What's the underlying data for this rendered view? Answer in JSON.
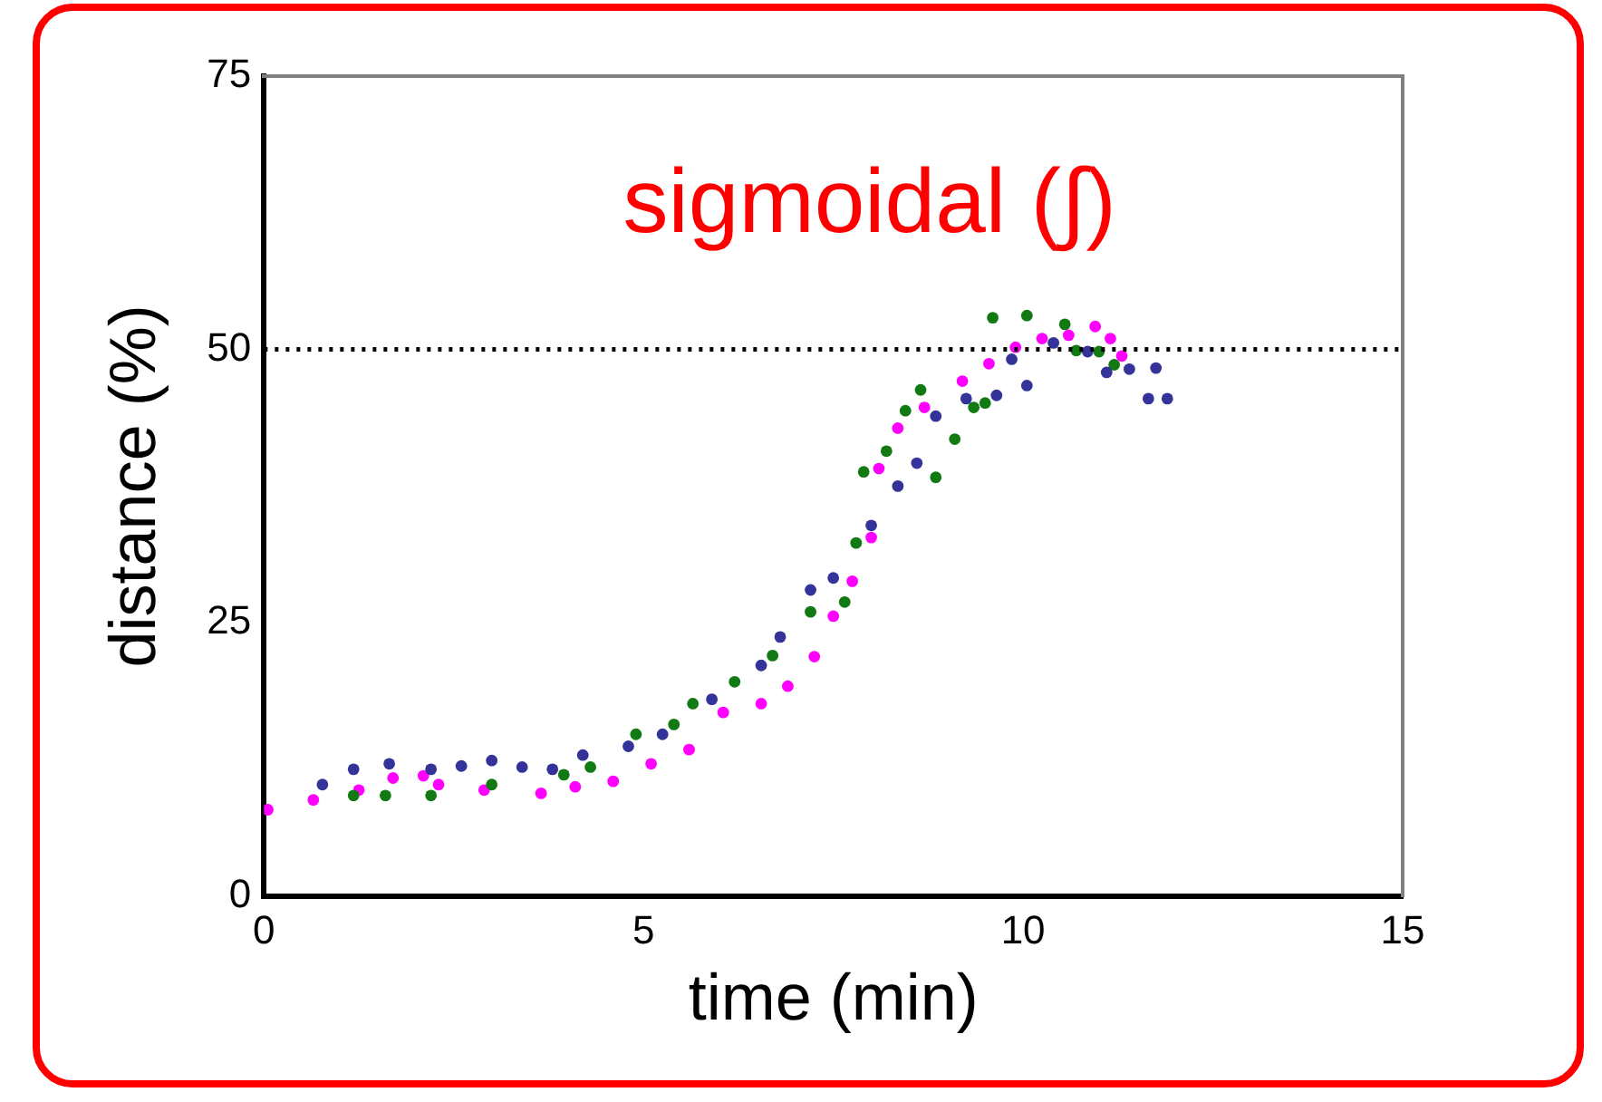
{
  "chart_data": {
    "type": "scatter",
    "title": "sigmoidal (∫)",
    "xlabel": "time (min)",
    "ylabel": "distance (%)",
    "xlim": [
      0,
      15
    ],
    "xticks": [
      0,
      5,
      10,
      15
    ],
    "ylim": [
      0,
      75
    ],
    "yticks": [
      0,
      25,
      50,
      75
    ],
    "grid": false,
    "legend": false,
    "marker": "circle",
    "ref_lines": [
      {
        "axis": "y",
        "value": 50,
        "color": "#000000",
        "line_style": "dotted"
      }
    ],
    "series": [
      {
        "color": "#333399",
        "x": [
          0.77,
          1.18,
          1.65,
          2.2,
          2.6,
          3.0,
          3.4,
          3.8,
          4.2,
          4.8,
          5.25,
          5.9,
          6.55,
          6.8,
          7.2,
          7.5,
          8.0,
          8.35,
          8.6,
          8.85,
          9.25,
          9.65,
          10.05,
          9.85,
          10.4,
          10.85,
          11.1,
          11.4,
          11.75,
          11.9,
          11.65
        ],
        "values": [
          10.2,
          11.6,
          12.1,
          11.6,
          11.9,
          12.4,
          11.8,
          11.6,
          12.9,
          13.7,
          14.8,
          18.0,
          21.1,
          23.7,
          28.0,
          29.1,
          33.9,
          37.5,
          39.6,
          43.9,
          45.5,
          45.8,
          46.7,
          49.1,
          50.6,
          49.8,
          47.9,
          48.2,
          48.3,
          45.5,
          45.5
        ]
      },
      {
        "color": "#127a12",
        "x": [
          1.18,
          1.6,
          2.2,
          3.0,
          3.95,
          4.3,
          4.9,
          5.4,
          5.65,
          6.2,
          6.7,
          7.2,
          7.65,
          7.8,
          7.9,
          8.2,
          8.45,
          8.65,
          8.85,
          9.1,
          9.35,
          9.5,
          9.6,
          10.05,
          10.55,
          10.7,
          11.0,
          11.2
        ],
        "values": [
          9.2,
          9.2,
          9.2,
          10.2,
          11.1,
          11.8,
          14.8,
          15.7,
          17.6,
          19.6,
          22.0,
          26.0,
          26.9,
          32.3,
          38.8,
          40.7,
          44.4,
          46.3,
          38.3,
          41.8,
          44.7,
          45.1,
          52.9,
          53.1,
          52.3,
          49.9,
          49.8,
          48.6
        ]
      },
      {
        "color": "#ff00ff",
        "x": [
          0.05,
          0.65,
          1.25,
          1.7,
          2.1,
          2.3,
          2.9,
          3.65,
          4.1,
          4.6,
          5.1,
          5.6,
          6.05,
          6.55,
          6.9,
          7.25,
          7.5,
          7.75,
          8.0,
          8.1,
          8.35,
          8.7,
          9.2,
          9.55,
          9.9,
          10.25,
          10.6,
          10.95,
          11.15,
          11.3
        ],
        "values": [
          7.9,
          8.8,
          9.7,
          10.8,
          11.0,
          10.2,
          9.7,
          9.4,
          10.0,
          10.5,
          12.1,
          13.4,
          16.8,
          17.6,
          19.2,
          21.9,
          25.6,
          28.8,
          32.8,
          39.1,
          42.8,
          44.7,
          47.1,
          48.7,
          50.2,
          51.0,
          51.3,
          52.1,
          51.0,
          49.4
        ]
      }
    ]
  }
}
